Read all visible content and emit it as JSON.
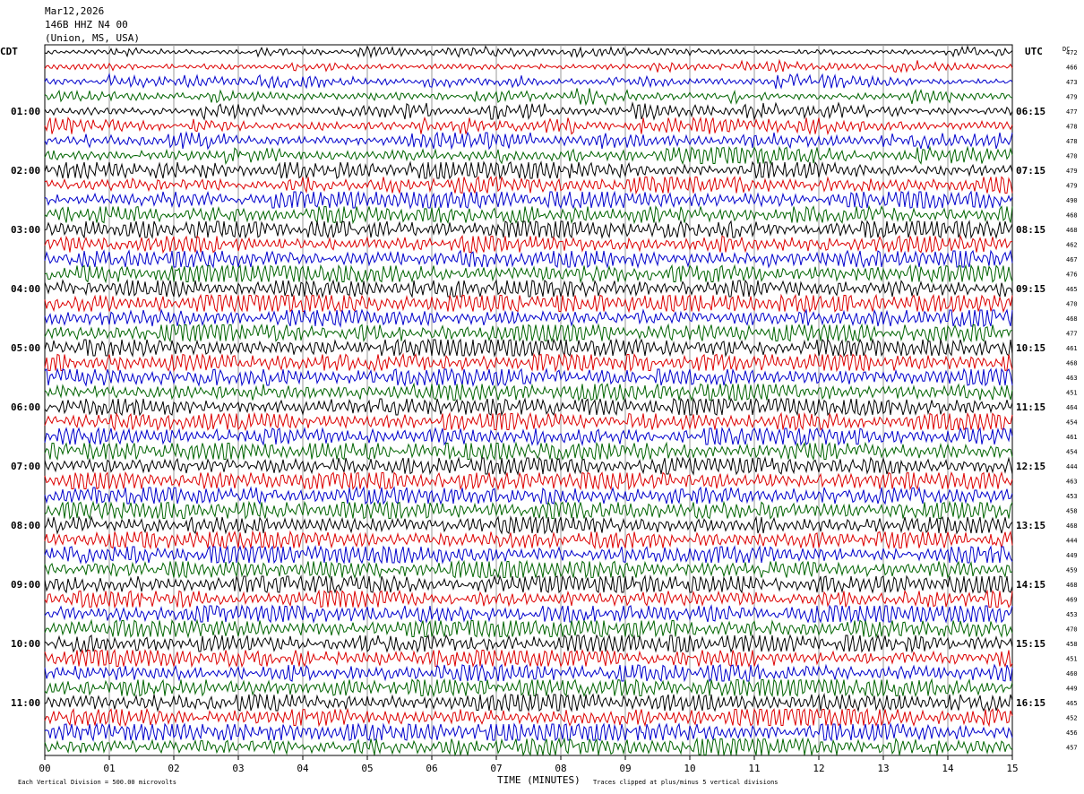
{
  "header": {
    "date": "Mar12,2026",
    "station": "146B HHZ N4 00",
    "location": "(Union, MS, USA)"
  },
  "left_axis": {
    "title": "CDT",
    "labels": [
      "01:00",
      "02:00",
      "03:00",
      "04:00",
      "05:00",
      "06:00",
      "07:00",
      "08:00",
      "09:00",
      "10:00",
      "11:00"
    ]
  },
  "right_axis": {
    "title": "UTC",
    "labels": [
      "06:15",
      "07:15",
      "08:15",
      "09:15",
      "10:15",
      "11:15",
      "12:15",
      "13:15",
      "14:15",
      "15:15",
      "16:15"
    ]
  },
  "dc_title": "DC",
  "dc_values": [
    472,
    466,
    473,
    479,
    477,
    478,
    478,
    470,
    479,
    479,
    490,
    468,
    468,
    462,
    467,
    476,
    465,
    470,
    468,
    477,
    461,
    468,
    463,
    451,
    464,
    454,
    461,
    454,
    444,
    463,
    453,
    458,
    468,
    444,
    449,
    459,
    468,
    469,
    453,
    470,
    458,
    451,
    460,
    449,
    465,
    452,
    456,
    457
  ],
  "trace_colors": [
    "#000000",
    "#dd0000",
    "#0000cc",
    "#006400"
  ],
  "x_axis": {
    "title": "TIME (MINUTES)",
    "ticks": [
      "00",
      "01",
      "02",
      "03",
      "04",
      "05",
      "06",
      "07",
      "08",
      "09",
      "10",
      "11",
      "12",
      "13",
      "14",
      "15"
    ]
  },
  "footer": {
    "scale": "Each Vertical Division =  500.00 microvolts",
    "clip": "Traces clipped at plus/minus 5 vertical divisions"
  }
}
